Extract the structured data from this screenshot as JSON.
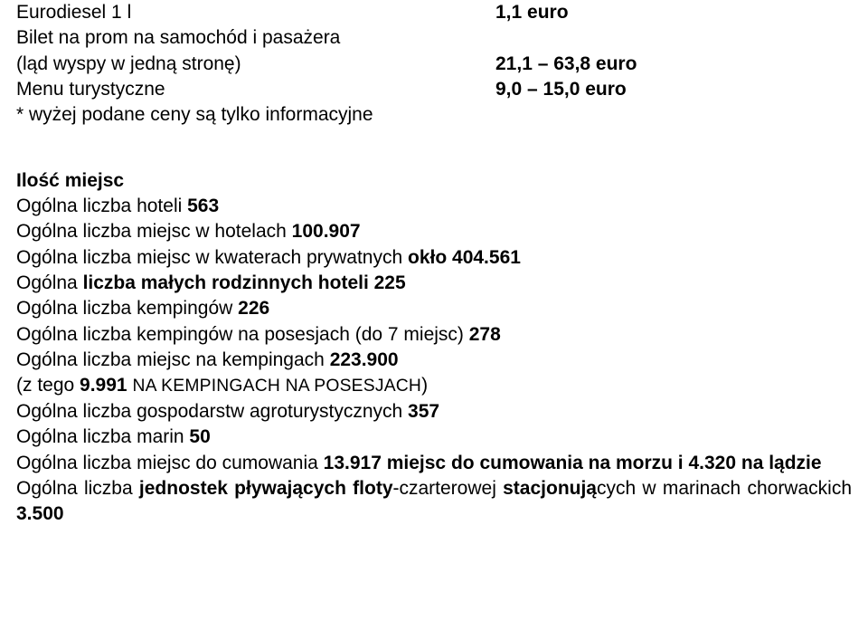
{
  "prices": {
    "row1_left": "Eurodiesel 1 l",
    "row1_right": "1,1 euro",
    "row2_left": "Bilet na prom na samochód i pasażera",
    "row3_left": "(ląd wyspy w jedną stronę)",
    "row3_right": "21,1 – 63,8 euro",
    "row4_left": "Menu turystyczne",
    "row4_right": "9,0 – 15,0 euro",
    "note": "* wyżej podane ceny są tylko informacyjne"
  },
  "heading": "Ilość miejsc",
  "lines": {
    "l1_a": "Ogólna liczba hoteli ",
    "l1_b": "563",
    "l2_a": "Ogólna liczba miejsc w hotelach ",
    "l2_b": "100.907",
    "l3_a": "Ogólna liczba miejsc w kwaterach prywatnych ",
    "l3_b": "okło 404.561",
    "l4_a": "Ogólna ",
    "l4_b": "liczba małych rodzinnych hoteli 225",
    "l5_a": "Ogólna liczba kempingów ",
    "l5_b": "226",
    "l6_a": "Ogólna liczba kempingów na posesjach (do 7 miejsc) ",
    "l6_b": "278",
    "l7_a": "Ogólna liczba miejsc na kempingach ",
    "l7_b": "223.900",
    "l8_a": "(z tego ",
    "l8_b": "9.991 ",
    "l8_c": "NA KEMPINGACH NA POSESJACH",
    "l8_d": ")",
    "l9_a": "Ogólna liczba gospodarstw agroturystycznych ",
    "l9_b": "357",
    "l10_a": "Ogólna liczba marin ",
    "l10_b": "50",
    "l11_a": "Ogólna liczba miejsc do cumowania ",
    "l11_b": "13.917 miejsc do cumowania na morzu i 4.320 na lądzie",
    "l12_a": "Ogólna liczba ",
    "l12_b": "jednostek pływających floty",
    "l12_c": "-czarterowej ",
    "l12_d": "stacjonują",
    "l12_e": "cych w marinach chorwackich ",
    "l12_f": "3.500"
  }
}
